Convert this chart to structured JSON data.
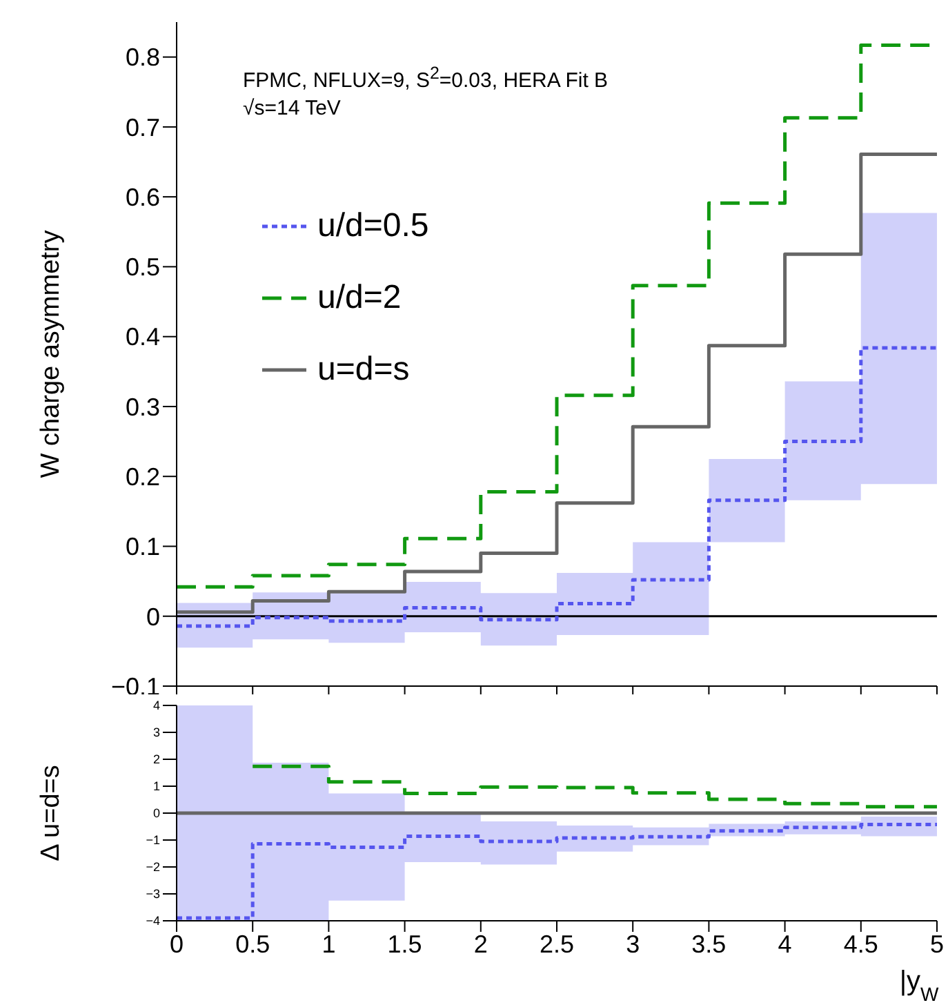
{
  "chart_data": [
    {
      "type": "step",
      "ylabel": "W charge asymmetry",
      "x": [
        0,
        0.5,
        1,
        1.5,
        2,
        2.5,
        3,
        3.5,
        4,
        4.5,
        5
      ],
      "xlim": [
        0,
        5
      ],
      "xticks": [
        0,
        0.5,
        1,
        1.5,
        2,
        2.5,
        3,
        3.5,
        4,
        4.5,
        5
      ],
      "ylim": [
        -0.1,
        0.85
      ],
      "yticks": [
        {
          "value": -0.1,
          "label": "−0.1"
        },
        0,
        0.1,
        0.2,
        0.3,
        0.4,
        0.5,
        0.6,
        0.7,
        0.8
      ],
      "tick_labels": "y",
      "legend": "top left",
      "annotations": [
        "FPMC, NFLUX=9, S$^{2}$=0.03, HERA Fit B",
        "√s=14 TeV"
      ],
      "ref_lines": [
        {
          "axis": "y",
          "value": 0,
          "color": "#000000"
        }
      ],
      "series": [
        {
          "name": "u/d=0.5",
          "color": "#5555ee",
          "line_style": "dotted",
          "values": [
            -0.014,
            -0.002,
            -0.007,
            0.012,
            -0.005,
            0.018,
            0.052,
            0.166,
            0.25,
            0.384,
            0.384
          ],
          "lower": [
            -0.045,
            -0.033,
            -0.038,
            -0.023,
            -0.042,
            -0.027,
            -0.027,
            0.106,
            0.166,
            0.189,
            0.189
          ],
          "upper": [
            0.019,
            0.034,
            0.033,
            0.049,
            0.033,
            0.062,
            0.106,
            0.225,
            0.336,
            0.577,
            0.577
          ]
        },
        {
          "name": "u/d=2",
          "color": "#119911",
          "line_style": "dashed",
          "values": [
            0.042,
            0.058,
            0.074,
            0.111,
            0.178,
            0.316,
            0.473,
            0.591,
            0.713,
            0.817,
            0.817
          ]
        },
        {
          "name": "u=d=s",
          "color": "#666666",
          "line_style": "solid",
          "values": [
            0.006,
            0.022,
            0.035,
            0.064,
            0.09,
            0.162,
            0.271,
            0.387,
            0.518,
            0.661,
            0.661
          ]
        }
      ]
    },
    {
      "type": "step",
      "ylabel": "Δ u=d=s",
      "xlabel": "|y$_{W}$ |",
      "x": [
        0,
        0.5,
        1,
        1.5,
        2,
        2.5,
        3,
        3.5,
        4,
        4.5,
        5
      ],
      "xlim": [
        0,
        5
      ],
      "xticks": [
        0,
        0.5,
        1,
        1.5,
        2,
        2.5,
        3,
        3.5,
        4,
        4.5,
        5
      ],
      "ylim": [
        -4,
        4
      ],
      "yticks": [
        {
          "value": -4,
          "label": "−4"
        },
        {
          "value": -3,
          "label": "−3"
        },
        {
          "value": -2,
          "label": "−2"
        },
        {
          "value": -1,
          "label": "−1"
        },
        0,
        1,
        2,
        3,
        4
      ],
      "series": [
        {
          "color": "#5555ee",
          "line_style": "dotted",
          "values": [
            -3.9,
            -1.14,
            -1.27,
            -0.86,
            -1.05,
            -0.92,
            -0.88,
            -0.66,
            -0.53,
            -0.42,
            -0.42
          ],
          "lower": [
            -4,
            -4,
            -3.25,
            -1.82,
            -1.91,
            -1.43,
            -1.19,
            -0.86,
            -0.79,
            -0.86,
            -0.86
          ],
          "upper": [
            4,
            1.87,
            0.73,
            0,
            -0.31,
            -0.46,
            -0.53,
            -0.4,
            -0.31,
            -0.13,
            -0.13
          ]
        },
        {
          "color": "#119911",
          "line_style": "dashed",
          "values": [
            null,
            1.74,
            1.16,
            0.73,
            0.97,
            0.95,
            0.75,
            0.51,
            0.35,
            0.24,
            0.24
          ]
        },
        {
          "color": "#666666",
          "line_style": "solid",
          "values": [
            0,
            0,
            0,
            0,
            0,
            0,
            0,
            0,
            0,
            0,
            0
          ]
        }
      ]
    }
  ]
}
